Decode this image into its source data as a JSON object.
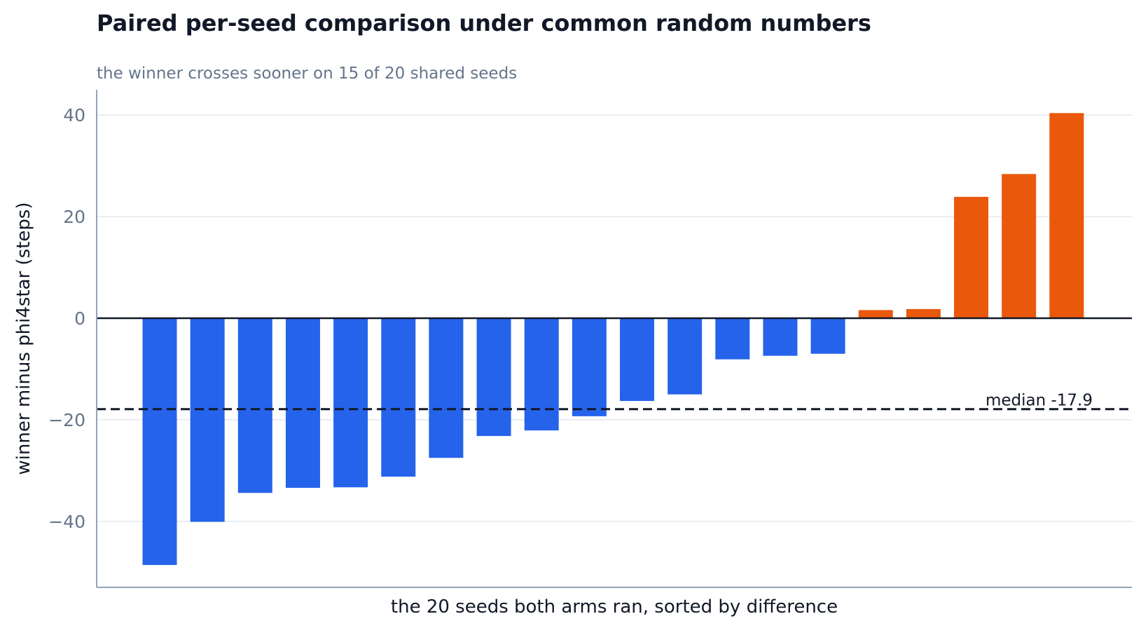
{
  "chart_data": {
    "type": "bar",
    "title": "Paired per-seed comparison under common random numbers",
    "subtitle": "the winner crosses sooner on 15 of 20 shared seeds",
    "xlabel": "the 20 seeds both arms ran, sorted by difference",
    "ylabel": "winner minus phi4star (steps)",
    "ylim": [
      -53,
      45
    ],
    "yticks": [
      -40,
      -20,
      0,
      20,
      40
    ],
    "ytick_labels": [
      "−40",
      "−20",
      "0",
      "20",
      "40"
    ],
    "values": [
      -48.6,
      -40.1,
      -34.4,
      -33.4,
      -33.3,
      -31.2,
      -27.5,
      -23.2,
      -22.1,
      -19.3,
      -16.3,
      -15.0,
      -8.1,
      -7.4,
      -7.0,
      1.6,
      1.8,
      23.9,
      28.4,
      40.4
    ],
    "median": {
      "value": -17.9,
      "label": "median -17.9"
    },
    "colors": {
      "negative": "#2563eb",
      "positive": "#ea580c",
      "grid": "#e2e8f0",
      "axis": "#94a3b8",
      "tick_text": "#64748b",
      "label_text": "#111827",
      "zero_line": "#111827",
      "median_line": "#111827"
    },
    "grid": true
  }
}
